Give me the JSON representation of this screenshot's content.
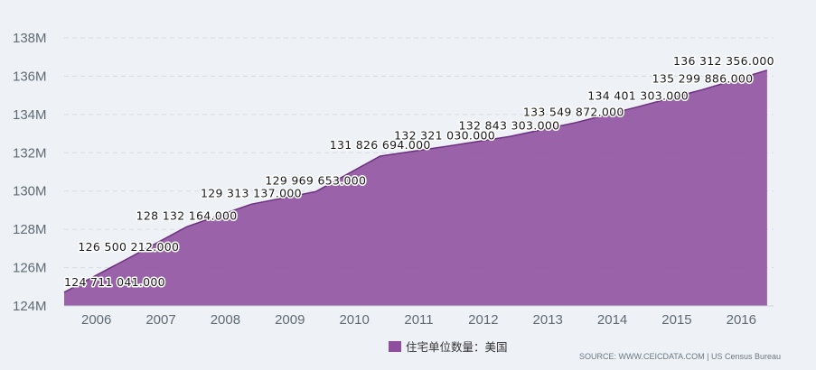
{
  "chart_data": {
    "type": "area",
    "x": [
      2005.5,
      2006.5,
      2007.4,
      2008.4,
      2009.4,
      2010.4,
      2011.4,
      2012.4,
      2013.4,
      2014.4,
      2015.4,
      2016.4
    ],
    "values": [
      124711041,
      126500212,
      128132164,
      129313137,
      129969653,
      131826694,
      132321030,
      132843303,
      133549872,
      134401303,
      135299886,
      136312356
    ],
    "data_labels": [
      "124 711 041.000",
      "126 500 212.000",
      "128 132 164.000",
      "129 313 137.000",
      "129 969 653.000",
      "131 826 694.000",
      "132 321 030.000",
      "132 843 303.000",
      "133 549 872.000",
      "134 401 303.000",
      "135 299 886.000",
      "136 312 356.000"
    ],
    "x_ticks": [
      "2006",
      "2007",
      "2008",
      "2009",
      "2010",
      "2011",
      "2012",
      "2013",
      "2014",
      "2015",
      "2016"
    ],
    "y_ticks": [
      "124M",
      "126M",
      "128M",
      "130M",
      "132M",
      "134M",
      "136M",
      "138M"
    ],
    "ylim": [
      124000000,
      138000000
    ],
    "xlim": [
      2005.5,
      2016.5
    ],
    "grid": true,
    "series": [
      {
        "name": "住宅单位数量：美国",
        "color": "#8e4f9e"
      }
    ],
    "legend_position": "bottom-center"
  },
  "source": "SOURCE: WWW.CEICDATA.COM | US Census Bureau"
}
